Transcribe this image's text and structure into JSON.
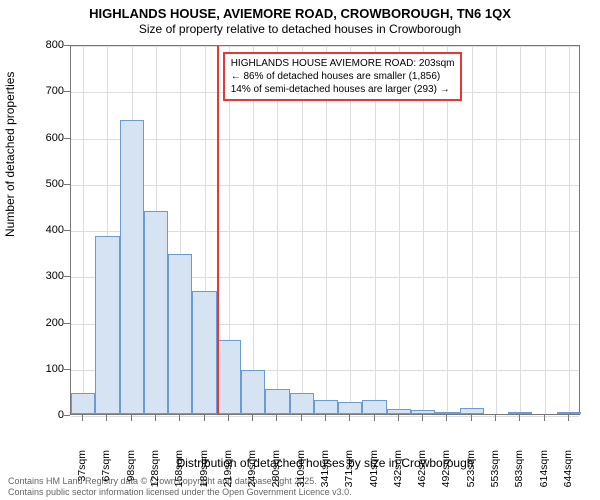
{
  "chart": {
    "type": "histogram",
    "title": "HIGHLANDS HOUSE, AVIEMORE ROAD, CROWBOROUGH, TN6 1QX",
    "subtitle": "Size of property relative to detached houses in Crowborough",
    "y_axis_label": "Number of detached properties",
    "x_axis_label": "Distribution of detached houses by size in Crowborough",
    "ylim": [
      0,
      800
    ],
    "ytick_step": 100,
    "x_categories": [
      "37sqm",
      "67sqm",
      "98sqm",
      "128sqm",
      "158sqm",
      "189sqm",
      "219sqm",
      "249sqm",
      "280sqm",
      "310sqm",
      "341sqm",
      "371sqm",
      "401sqm",
      "432sqm",
      "462sqm",
      "492sqm",
      "523sqm",
      "553sqm",
      "583sqm",
      "614sqm",
      "644sqm"
    ],
    "values": [
      45,
      385,
      635,
      440,
      345,
      265,
      160,
      95,
      55,
      45,
      30,
      25,
      30,
      10,
      8,
      5,
      12,
      0,
      4,
      0,
      3
    ],
    "bar_fill": "#d5e3f3",
    "bar_border": "#6a9bd1",
    "background_color": "#ffffff",
    "grid_color": "#dddddd",
    "axis_color": "#777777",
    "marker_color": "#e53935",
    "marker_at_index": 5.5,
    "annotation": {
      "line1": "HIGHLANDS HOUSE AVIEMORE ROAD: 203sqm",
      "line2": "← 86% of detached houses are smaller (1,856)",
      "line3": "14% of semi-detached houses are larger (293) →"
    },
    "footer_line1": "Contains HM Land Registry data © Crown copyright and database right 2025.",
    "footer_line2": "Contains public sector information licensed under the Open Government Licence v3.0.",
    "title_fontsize": 13,
    "subtitle_fontsize": 12,
    "label_fontsize": 12,
    "tick_fontsize": 11,
    "annotation_fontsize": 10
  }
}
